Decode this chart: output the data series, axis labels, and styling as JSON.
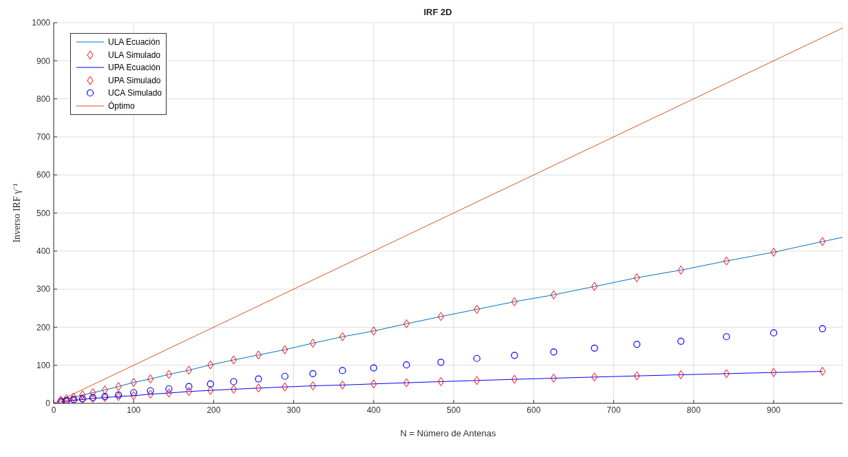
{
  "chart_data": {
    "type": "line",
    "title": "IRF 2D",
    "xlabel": "N = Número de Antenas",
    "ylabel": "Inverso IRF γ⁻¹",
    "xlim": [
      0,
      986
    ],
    "ylim": [
      0,
      1000
    ],
    "xticks": [
      0,
      100,
      200,
      300,
      400,
      500,
      600,
      700,
      800,
      900
    ],
    "yticks": [
      0,
      100,
      200,
      300,
      400,
      500,
      600,
      700,
      800,
      900,
      1000
    ],
    "grid": true,
    "legend": "top left",
    "series": [
      {
        "name": "ULA Ecuación",
        "color": "#0072bd",
        "marker": "none",
        "x": [
          9,
          16,
          25,
          36,
          49,
          64,
          81,
          100,
          121,
          144,
          169,
          196,
          225,
          256,
          289,
          324,
          361,
          400,
          441,
          484,
          529,
          576,
          625,
          676,
          729,
          784,
          841,
          900,
          961,
          986
        ],
        "values": [
          8,
          12,
          16,
          22,
          28,
          35,
          44,
          55,
          64,
          76,
          87,
          101,
          114,
          127,
          141,
          158,
          175,
          190,
          209,
          228,
          247,
          267,
          285,
          307,
          330,
          350,
          374,
          397,
          425,
          436
        ]
      },
      {
        "name": "ULA Simulado",
        "type": "scatter",
        "color": "#ff0000",
        "marker": "diamond",
        "x": [
          9,
          16,
          25,
          36,
          49,
          64,
          81,
          100,
          121,
          144,
          169,
          196,
          225,
          256,
          289,
          324,
          361,
          400,
          441,
          484,
          529,
          576,
          625,
          676,
          729,
          784,
          841,
          900,
          961
        ],
        "values": [
          8,
          12,
          16,
          22,
          28,
          35,
          44,
          55,
          64,
          76,
          87,
          101,
          114,
          127,
          141,
          158,
          175,
          190,
          209,
          228,
          247,
          267,
          285,
          307,
          330,
          350,
          374,
          397,
          425
        ]
      },
      {
        "name": "UPA Ecuación",
        "color": "#0000ff",
        "marker": "none",
        "x": [
          9,
          16,
          25,
          36,
          49,
          64,
          81,
          100,
          121,
          144,
          169,
          196,
          225,
          256,
          289,
          324,
          361,
          400,
          441,
          484,
          529,
          576,
          625,
          676,
          729,
          784,
          841,
          900,
          961
        ],
        "values": [
          4,
          6,
          8,
          10,
          13,
          15,
          18,
          20,
          24,
          27,
          31,
          34,
          37,
          40,
          43,
          46,
          48,
          51,
          54,
          57,
          60,
          63,
          66,
          69,
          72,
          75,
          78,
          81,
          84
        ]
      },
      {
        "name": "UPA Simulado",
        "type": "scatter",
        "color": "#ff0000",
        "marker": "diamond",
        "x": [
          9,
          16,
          25,
          36,
          49,
          64,
          81,
          100,
          121,
          144,
          169,
          196,
          225,
          256,
          289,
          324,
          361,
          400,
          441,
          484,
          529,
          576,
          625,
          676,
          729,
          784,
          841,
          900,
          961
        ],
        "values": [
          4,
          6,
          8,
          10,
          13,
          15,
          18,
          20,
          24,
          27,
          31,
          34,
          37,
          40,
          43,
          46,
          48,
          51,
          54,
          57,
          60,
          63,
          66,
          69,
          72,
          75,
          78,
          81,
          84
        ]
      },
      {
        "name": "UCA Simulado",
        "type": "scatter",
        "color": "#0000ff",
        "marker": "circle",
        "x": [
          9,
          16,
          25,
          36,
          49,
          64,
          81,
          100,
          121,
          144,
          169,
          196,
          225,
          256,
          289,
          324,
          361,
          400,
          441,
          484,
          529,
          576,
          625,
          676,
          729,
          784,
          841,
          900,
          961
        ],
        "values": [
          5,
          7,
          10,
          12,
          15,
          18,
          22,
          28,
          33,
          38,
          44,
          51,
          57,
          64,
          71,
          78,
          86,
          93,
          101,
          108,
          118,
          126,
          135,
          145,
          155,
          163,
          175,
          185,
          196
        ]
      },
      {
        "name": "Óptimo",
        "color": "#d95319",
        "marker": "none",
        "x": [
          0,
          986
        ],
        "values": [
          0,
          986
        ]
      }
    ]
  }
}
